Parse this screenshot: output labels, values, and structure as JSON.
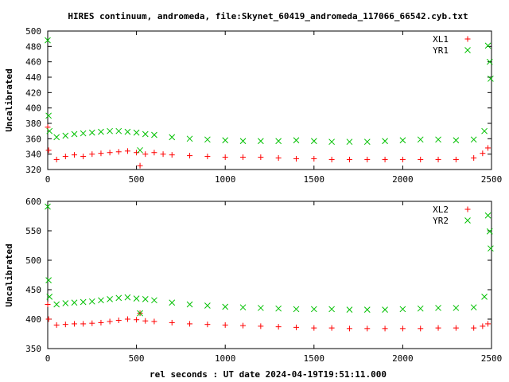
{
  "title": "HIRES continuum, andromeda, file:Skynet_60419_andromeda_117066_66542.cyb.txt",
  "xlabel": "rel seconds : UT date 2024-04-19T19:51:11.000",
  "colors": {
    "red": "#ff0000",
    "green": "#00c000"
  },
  "chart_data": [
    {
      "type": "scatter",
      "ylabel": "Uncalibrated",
      "xlim": [
        0,
        2500
      ],
      "ylim": [
        320,
        500
      ],
      "xticks": [
        "0",
        "500",
        "1000",
        "1500",
        "2000",
        "2500"
      ],
      "yticks": [
        "320",
        "340",
        "360",
        "380",
        "400",
        "420",
        "440",
        "460",
        "480",
        "500"
      ],
      "legend": "top-right",
      "series": [
        {
          "name": "XL1",
          "marker": "plus",
          "color": "#ff0000",
          "x": [
            0,
            5,
            50,
            100,
            150,
            200,
            250,
            300,
            350,
            400,
            450,
            500,
            520,
            550,
            600,
            650,
            700,
            800,
            900,
            1000,
            1100,
            1200,
            1300,
            1400,
            1500,
            1600,
            1700,
            1800,
            1900,
            2000,
            2100,
            2200,
            2300,
            2400,
            2450,
            2480
          ],
          "y": [
            375,
            345,
            333,
            337,
            339,
            337,
            340,
            341,
            342,
            343,
            344,
            342,
            325,
            340,
            342,
            340,
            339,
            338,
            337,
            336,
            336,
            336,
            335,
            334,
            334,
            333,
            333,
            333,
            333,
            333,
            333,
            333,
            333,
            335,
            341,
            348
          ]
        },
        {
          "name": "YR1",
          "marker": "cross",
          "color": "#00c000",
          "x": [
            0,
            5,
            10,
            50,
            100,
            150,
            200,
            250,
            300,
            350,
            400,
            450,
            500,
            520,
            550,
            600,
            700,
            800,
            900,
            1000,
            1100,
            1200,
            1300,
            1400,
            1500,
            1600,
            1700,
            1800,
            1900,
            2000,
            2100,
            2200,
            2300,
            2400,
            2460,
            2480,
            2490,
            2495
          ],
          "y": [
            488,
            390,
            370,
            362,
            364,
            366,
            367,
            368,
            369,
            370,
            370,
            369,
            368,
            345,
            366,
            365,
            362,
            360,
            359,
            358,
            357,
            357,
            357,
            358,
            357,
            356,
            356,
            356,
            357,
            358,
            359,
            359,
            358,
            359,
            370,
            481,
            460,
            438
          ]
        }
      ]
    },
    {
      "type": "scatter",
      "ylabel": "Uncalibrated",
      "xlim": [
        0,
        2500
      ],
      "ylim": [
        350,
        600
      ],
      "xticks": [
        "0",
        "500",
        "1000",
        "1500",
        "2000",
        "2500"
      ],
      "yticks": [
        "350",
        "400",
        "450",
        "500",
        "550",
        "600"
      ],
      "legend": "top-right",
      "series": [
        {
          "name": "XL2",
          "marker": "plus",
          "color": "#ff0000",
          "x": [
            0,
            5,
            50,
            100,
            150,
            200,
            250,
            300,
            350,
            400,
            450,
            500,
            520,
            550,
            600,
            700,
            800,
            900,
            1000,
            1100,
            1200,
            1300,
            1400,
            1500,
            1600,
            1700,
            1800,
            1900,
            2000,
            2100,
            2200,
            2300,
            2400,
            2450,
            2480
          ],
          "y": [
            425,
            400,
            390,
            391,
            392,
            392,
            393,
            394,
            396,
            398,
            400,
            399,
            410,
            397,
            396,
            394,
            392,
            391,
            390,
            389,
            388,
            387,
            386,
            385,
            385,
            384,
            384,
            384,
            384,
            384,
            385,
            385,
            385,
            388,
            392
          ]
        },
        {
          "name": "YR2",
          "marker": "cross",
          "color": "#00c000",
          "x": [
            0,
            5,
            10,
            50,
            100,
            150,
            200,
            250,
            300,
            350,
            400,
            450,
            500,
            520,
            550,
            600,
            700,
            800,
            900,
            1000,
            1100,
            1200,
            1300,
            1400,
            1500,
            1600,
            1700,
            1800,
            1900,
            2000,
            2100,
            2200,
            2300,
            2400,
            2460,
            2480,
            2490,
            2495
          ],
          "y": [
            591,
            466,
            438,
            425,
            427,
            428,
            429,
            430,
            432,
            434,
            436,
            437,
            435,
            410,
            434,
            432,
            428,
            425,
            423,
            421,
            420,
            419,
            418,
            417,
            417,
            417,
            416,
            416,
            416,
            417,
            418,
            419,
            419,
            420,
            438,
            576,
            549,
            520
          ]
        }
      ]
    }
  ]
}
